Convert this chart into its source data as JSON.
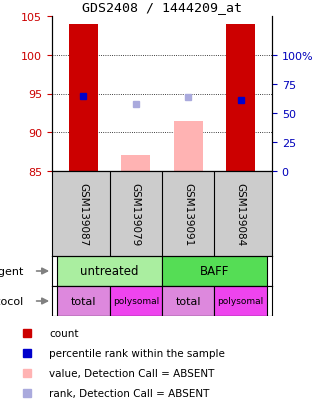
{
  "title": "GDS2408 / 1444209_at",
  "samples": [
    "GSM139087",
    "GSM139079",
    "GSM139091",
    "GSM139084"
  ],
  "ylim": [
    85,
    105
  ],
  "yticks_left": [
    85,
    90,
    95,
    100,
    105
  ],
  "yticks_right_positions": [
    85,
    88.75,
    92.5,
    96.25,
    100
  ],
  "yticks_right_labels": [
    "0",
    "25",
    "50",
    "75",
    "100%"
  ],
  "bar_values": [
    104.0,
    87.1,
    91.5,
    104.0
  ],
  "bar_colors": [
    "#cc0000",
    "#ffb3b3",
    "#ffb3b3",
    "#cc0000"
  ],
  "percentile_values": [
    94.7,
    93.7,
    94.6,
    94.1
  ],
  "percentile_colors": [
    "#0000cc",
    "#aaaadd",
    "#aaaadd",
    "#0000cc"
  ],
  "ybase": 85,
  "agent_untreated_color": "#aaeea0",
  "agent_baff_color": "#55dd55",
  "protocol_total_color": "#dd88dd",
  "protocol_polysomal_color": "#ee44ee",
  "protocol_labels": [
    "total",
    "polysomal",
    "total",
    "polysomal"
  ],
  "legend_items": [
    {
      "color": "#cc0000",
      "label": "count"
    },
    {
      "color": "#0000cc",
      "label": "percentile rank within the sample"
    },
    {
      "color": "#ffb3b3",
      "label": "value, Detection Call = ABSENT"
    },
    {
      "color": "#aaaadd",
      "label": "rank, Detection Call = ABSENT"
    }
  ],
  "left_label_color": "#cc0000",
  "right_label_color": "#0000bb",
  "bg_color": "#ffffff",
  "sample_box_color": "#cccccc"
}
